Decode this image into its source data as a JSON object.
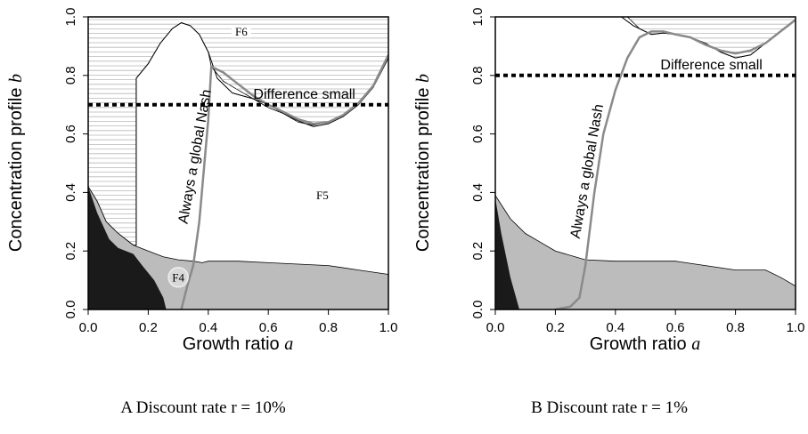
{
  "chart_data": [
    {
      "type": "area",
      "caption": "A Discount rate r = 10%",
      "xlabel_text": "Growth ratio",
      "xlabel_var": "a",
      "ylabel_text": "Concentration profile",
      "ylabel_var": "b",
      "xlim": [
        0,
        1
      ],
      "ylim": [
        0,
        1
      ],
      "xticks": [
        "0.0",
        "0.2",
        "0.4",
        "0.6",
        "0.8",
        "1.0"
      ],
      "yticks": [
        "0.0",
        "0.2",
        "0.4",
        "0.6",
        "0.8",
        "1.0"
      ],
      "black_region": [
        [
          0,
          0
        ],
        [
          0,
          0.42
        ],
        [
          0.03,
          0.33
        ],
        [
          0.07,
          0.24
        ],
        [
          0.1,
          0.21
        ],
        [
          0.15,
          0.19
        ],
        [
          0.18,
          0.15
        ],
        [
          0.22,
          0.1
        ],
        [
          0.25,
          0.04
        ],
        [
          0.26,
          0
        ]
      ],
      "gray_region": [
        [
          0,
          0
        ],
        [
          0,
          0.42
        ],
        [
          0.03,
          0.37
        ],
        [
          0.06,
          0.3
        ],
        [
          0.1,
          0.26
        ],
        [
          0.15,
          0.22
        ],
        [
          0.2,
          0.2
        ],
        [
          0.25,
          0.18
        ],
        [
          0.3,
          0.17
        ],
        [
          0.35,
          0.165
        ],
        [
          0.38,
          0.16
        ],
        [
          0.4,
          0.165
        ],
        [
          0.5,
          0.165
        ],
        [
          0.6,
          0.16
        ],
        [
          0.7,
          0.155
        ],
        [
          0.8,
          0.15
        ],
        [
          0.9,
          0.135
        ],
        [
          1,
          0.12
        ],
        [
          1,
          0
        ]
      ],
      "hatched_region": [
        [
          0,
          0.42
        ],
        [
          0.03,
          0.37
        ],
        [
          0.06,
          0.3
        ],
        [
          0.1,
          0.26
        ],
        [
          0.15,
          0.22
        ],
        [
          0.16,
          0.22
        ],
        [
          0.16,
          0.79
        ],
        [
          0.2,
          0.84
        ],
        [
          0.24,
          0.91
        ],
        [
          0.28,
          0.96
        ],
        [
          0.31,
          0.98
        ],
        [
          0.34,
          0.97
        ],
        [
          0.37,
          0.94
        ],
        [
          0.4,
          0.88
        ],
        [
          0.41,
          0.83
        ],
        [
          0.45,
          0.78
        ],
        [
          0.5,
          0.75
        ],
        [
          0.55,
          0.72
        ],
        [
          0.6,
          0.69
        ],
        [
          0.65,
          0.67
        ],
        [
          0.7,
          0.64
        ],
        [
          0.75,
          0.63
        ],
        [
          0.8,
          0.64
        ],
        [
          0.85,
          0.66
        ],
        [
          0.9,
          0.7
        ],
        [
          0.95,
          0.76
        ],
        [
          1,
          0.86
        ],
        [
          1,
          1
        ],
        [
          0,
          1
        ]
      ],
      "boundary_line": [
        [
          0.16,
          0.22
        ],
        [
          0.16,
          0.79
        ],
        [
          0.2,
          0.84
        ],
        [
          0.24,
          0.91
        ],
        [
          0.28,
          0.96
        ],
        [
          0.31,
          0.98
        ],
        [
          0.34,
          0.97
        ],
        [
          0.37,
          0.94
        ],
        [
          0.4,
          0.88
        ],
        [
          0.43,
          0.79
        ],
        [
          0.48,
          0.74
        ],
        [
          0.55,
          0.72
        ],
        [
          0.6,
          0.7
        ],
        [
          0.65,
          0.67
        ],
        [
          0.7,
          0.645
        ],
        [
          0.75,
          0.625
        ],
        [
          0.8,
          0.635
        ],
        [
          0.85,
          0.66
        ],
        [
          0.9,
          0.7
        ],
        [
          0.95,
          0.76
        ],
        [
          1,
          0.86
        ]
      ],
      "nash_line": [
        [
          0.31,
          0
        ],
        [
          0.33,
          0.08
        ],
        [
          0.35,
          0.15
        ],
        [
          0.37,
          0.3
        ],
        [
          0.4,
          0.65
        ],
        [
          0.41,
          0.83
        ],
        [
          0.45,
          0.81
        ],
        [
          0.5,
          0.77
        ],
        [
          0.55,
          0.73
        ],
        [
          0.6,
          0.7
        ],
        [
          0.65,
          0.675
        ],
        [
          0.7,
          0.65
        ],
        [
          0.75,
          0.635
        ],
        [
          0.8,
          0.64
        ],
        [
          0.85,
          0.665
        ],
        [
          0.9,
          0.705
        ],
        [
          0.95,
          0.765
        ],
        [
          1,
          0.87
        ]
      ],
      "difference_small_y": 0.7,
      "labels": {
        "difference_small": "Difference small",
        "nash": "Always a global Nash",
        "f4": "F4",
        "f5": "F5",
        "f6": "F6"
      },
      "label_data_positions": {
        "f4": [
          0.3,
          0.11
        ],
        "f5": [
          0.78,
          0.39
        ],
        "f6": [
          0.51,
          0.95
        ],
        "nash": [
          0.37,
          0.52
        ],
        "difference_small": [
          0.72,
          0.72
        ]
      },
      "colors": {
        "black": "#1a1a1a",
        "gray": "#bcbcbc",
        "hatch": "#b8b8b8",
        "nash": "#8a8a8a"
      }
    },
    {
      "type": "area",
      "caption": "B Discount rate r = 1%",
      "xlabel_text": "Growth ratio",
      "xlabel_var": "a",
      "ylabel_text": "Concentration profile",
      "ylabel_var": "b",
      "xlim": [
        0,
        1
      ],
      "ylim": [
        0,
        1
      ],
      "xticks": [
        "0.0",
        "0.2",
        "0.4",
        "0.6",
        "0.8",
        "1.0"
      ],
      "yticks": [
        "0.0",
        "0.2",
        "0.4",
        "0.6",
        "0.8",
        "1.0"
      ],
      "black_region": [
        [
          0,
          0
        ],
        [
          0,
          0.38
        ],
        [
          0.02,
          0.26
        ],
        [
          0.05,
          0.11
        ],
        [
          0.08,
          0
        ]
      ],
      "gray_region": [
        [
          0,
          0
        ],
        [
          0,
          0.39
        ],
        [
          0.05,
          0.31
        ],
        [
          0.1,
          0.26
        ],
        [
          0.15,
          0.23
        ],
        [
          0.2,
          0.2
        ],
        [
          0.3,
          0.17
        ],
        [
          0.4,
          0.165
        ],
        [
          0.5,
          0.165
        ],
        [
          0.6,
          0.165
        ],
        [
          0.7,
          0.15
        ],
        [
          0.8,
          0.135
        ],
        [
          0.85,
          0.135
        ],
        [
          0.9,
          0.135
        ],
        [
          0.95,
          0.11
        ],
        [
          1,
          0.08
        ],
        [
          1,
          0
        ]
      ],
      "hatched_region": [
        [
          0.44,
          1
        ],
        [
          0.48,
          0.96
        ],
        [
          0.52,
          0.94
        ],
        [
          0.56,
          0.945
        ],
        [
          0.6,
          0.94
        ],
        [
          0.65,
          0.93
        ],
        [
          0.7,
          0.91
        ],
        [
          0.75,
          0.88
        ],
        [
          0.8,
          0.86
        ],
        [
          0.85,
          0.87
        ],
        [
          0.9,
          0.91
        ],
        [
          0.95,
          0.95
        ],
        [
          1,
          0.99
        ],
        [
          1,
          1
        ]
      ],
      "boundary_line": [
        [
          0.42,
          1
        ],
        [
          0.46,
          0.97
        ],
        [
          0.52,
          0.94
        ],
        [
          0.56,
          0.945
        ],
        [
          0.6,
          0.94
        ],
        [
          0.65,
          0.93
        ],
        [
          0.7,
          0.91
        ],
        [
          0.75,
          0.88
        ],
        [
          0.8,
          0.86
        ],
        [
          0.85,
          0.87
        ],
        [
          0.9,
          0.91
        ],
        [
          0.95,
          0.95
        ],
        [
          1,
          0.99
        ]
      ],
      "nash_line": [
        [
          0.2,
          0
        ],
        [
          0.25,
          0.01
        ],
        [
          0.28,
          0.04
        ],
        [
          0.3,
          0.15
        ],
        [
          0.33,
          0.4
        ],
        [
          0.36,
          0.6
        ],
        [
          0.4,
          0.75
        ],
        [
          0.44,
          0.86
        ],
        [
          0.48,
          0.93
        ],
        [
          0.52,
          0.95
        ],
        [
          0.56,
          0.95
        ],
        [
          0.6,
          0.94
        ],
        [
          0.65,
          0.93
        ],
        [
          0.7,
          0.905
        ],
        [
          0.75,
          0.885
        ],
        [
          0.8,
          0.875
        ],
        [
          0.85,
          0.885
        ],
        [
          0.9,
          0.91
        ],
        [
          0.95,
          0.95
        ],
        [
          1,
          0.99
        ]
      ],
      "difference_small_y": 0.8,
      "labels": {
        "difference_small": "Difference small",
        "nash": "Always a global Nash"
      },
      "label_data_positions": {
        "nash": [
          0.32,
          0.47
        ],
        "difference_small": [
          0.72,
          0.82
        ]
      },
      "colors": {
        "black": "#1a1a1a",
        "gray": "#bcbcbc",
        "hatch": "#b8b8b8",
        "nash": "#8a8a8a"
      }
    }
  ]
}
